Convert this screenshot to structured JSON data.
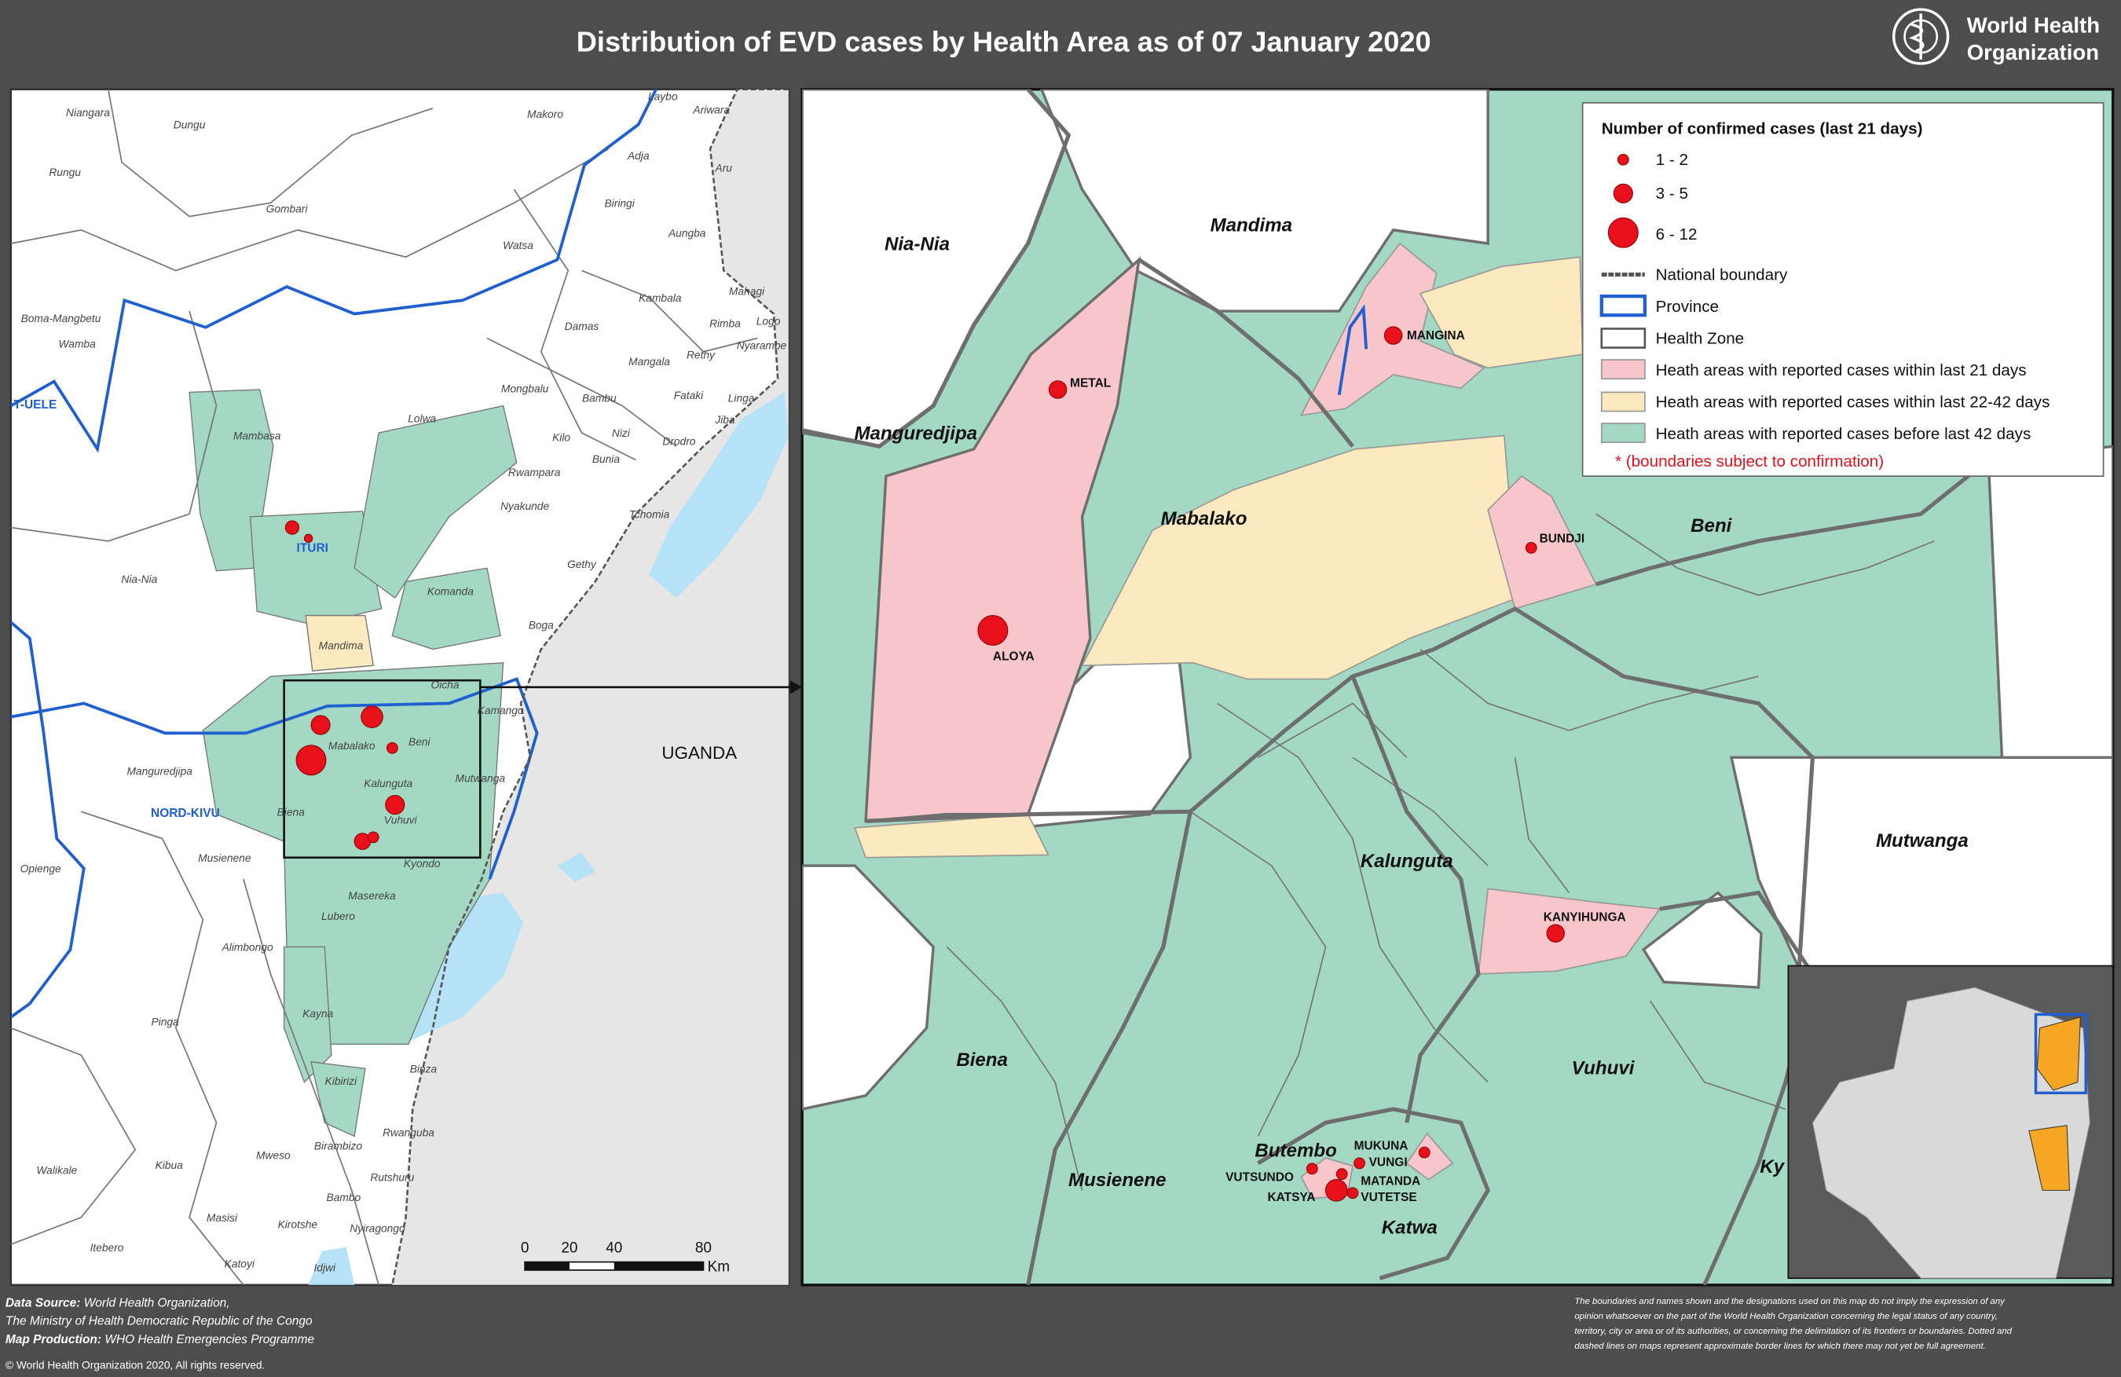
{
  "header": {
    "title": "Distribution of EVD cases by Health Area as of 07 January 2020",
    "org": [
      "World Health",
      "Organization"
    ]
  },
  "overview_map": {
    "labels": [
      "Niangara",
      "Dungu",
      "Rungu",
      "Gombari",
      "Watsa",
      "Makoro",
      "Laybo",
      "Ariwara",
      "Adja",
      "Aru",
      "Biringi",
      "Aungba",
      "Kambala",
      "Mahagi",
      "Rimba",
      "Logo",
      "Damas",
      "Boma-Mangbetu",
      "Wamba",
      "Mangala",
      "Rethy",
      "Nyarambe",
      "Mongbalu",
      "Bambu",
      "Fataki",
      "Linga",
      "Mambasa",
      "Lolwa",
      "Kilo",
      "Nizi",
      "Jiba",
      "Drodro",
      "Bunia",
      "Rwampara",
      "Nyakunde",
      "Tchomia",
      "Nia-Nia",
      "Gethy",
      "Komanda",
      "Boga",
      "Mandima",
      "Oicha",
      "Kamango",
      "Mabalako",
      "Beni",
      "Manguredjipa",
      "Mutwanga",
      "Kalunguta",
      "Biena",
      "Vuhuvi",
      "Musienene",
      "Kyondo",
      "Opienge",
      "Masereka",
      "Lubero",
      "Alimbongo",
      "Kayna",
      "Pinga",
      "Kibirizi",
      "Binza",
      "Walikale",
      "Mweso",
      "Birambizo",
      "Rwanguba",
      "Kibua",
      "Rutshuru",
      "Bambo",
      "Masisi",
      "Kirotshe",
      "Nyiragongo",
      "Itebero",
      "Katoyi",
      "Idjwi"
    ],
    "provinces": [
      "T-UELE",
      "ITURI",
      "NORD-KIVU"
    ],
    "country": "UGANDA",
    "scale": {
      "ticks": [
        0,
        20,
        40,
        80
      ],
      "unit": "Km"
    }
  },
  "detail_map": {
    "zones": [
      "Nia-Nia",
      "Mandima",
      "Manguredjipa",
      "Mabalako",
      "Beni",
      "Kalunguta",
      "Mutwanga",
      "Biena",
      "Vuhuvi",
      "Musienene",
      "Butembo",
      "Katwa",
      "Ky"
    ],
    "health_areas": [
      "METAL",
      "MANGINA",
      "ALOYA",
      "BUNDJI",
      "KANYIHUNGA",
      "MUKUNA",
      "VUNGI",
      "VUTSUNDO",
      "MATANDA",
      "KATSYA",
      "VUTETSE"
    ]
  },
  "legend": {
    "title": "Number of confirmed cases (last 21 days)",
    "case_classes": [
      "1 - 2",
      "3 - 5",
      "6 - 12"
    ],
    "items": [
      "National boundary",
      "Province",
      "Health Zone",
      "Heath areas with reported cases within last 21 days",
      "Heath areas with reported cases within last 22-42 days",
      "Heath areas with reported cases before last 42 days"
    ],
    "note": "* (boundaries subject to confirmation)"
  },
  "footer": {
    "credits": [
      {
        "label": "Data Source:",
        "text": " World Health Organization,"
      },
      {
        "label": "",
        "text": "The Ministry of Health Democratic Republic of the Congo"
      },
      {
        "label": "Map Production:",
        "text": " WHO Health Emergencies Programme"
      }
    ],
    "copyright": "© World Health Organization 2020, All rights reserved.",
    "disclaimer": [
      "The boundaries and names shown and the designations used on this map do not imply the expression of any",
      "opinion whatsoever on the part of the World Health Organization concerning the legal status of any country,",
      "territory, city or area or of its authorities, or concerning the delimitation of its frontiers or boundaries. Dotted and",
      "dashed lines on maps represent approximate border lines for which there may not yet be full agreement."
    ]
  }
}
